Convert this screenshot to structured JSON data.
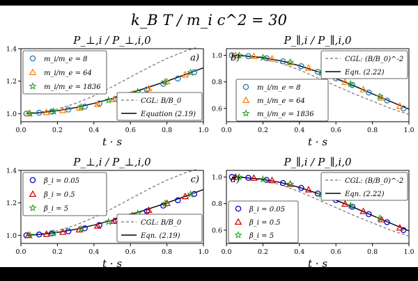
{
  "suptitle": "k_B T / m_i c^2 = 30",
  "colors": {
    "blue": "#1f77b4",
    "orange": "#ff7f0e",
    "green": "#2ca02c",
    "blue_b": "#0000cc",
    "red": "#e00000",
    "cgl": "#707070",
    "eqn": "#000000"
  },
  "chart_data": [
    {
      "id": "a",
      "type": "line",
      "title": "P_⊥,i / P_⊥,i,0",
      "panel_label": "a)",
      "xlabel": "t · s",
      "xlim": [
        0,
        1
      ],
      "ylim": [
        0.95,
        1.4
      ],
      "xticks": [
        0.0,
        0.2,
        0.4,
        0.6,
        0.8,
        1.0
      ],
      "yticks": [
        1.0,
        1.2,
        1.4
      ],
      "legend_top": {
        "position": "top-left",
        "entries": [
          {
            "label": "m_i/m_e = 8",
            "marker": "circle",
            "color": "blue"
          },
          {
            "label": "m_i/m_e = 64",
            "marker": "triangle",
            "color": "orange"
          },
          {
            "label": "m_i/m_e = 1836",
            "marker": "star",
            "color": "green"
          }
        ]
      },
      "legend_bottom": {
        "position": "bottom-right",
        "entries": [
          {
            "label": "CGL: B/B_0",
            "style": "dashed",
            "color": "cgl"
          },
          {
            "label": "Equation (2.19)",
            "style": "solid",
            "color": "eqn"
          }
        ]
      },
      "series": [
        {
          "name": "CGL",
          "style": "dashed",
          "color": "cgl",
          "x": [
            0.03,
            0.1,
            0.2,
            0.3,
            0.4,
            0.5,
            0.6,
            0.7,
            0.8,
            0.9,
            0.97
          ],
          "y": [
            1.0,
            1.007,
            1.028,
            1.063,
            1.11,
            1.165,
            1.225,
            1.285,
            1.34,
            1.385,
            1.41
          ]
        },
        {
          "name": "Eqn",
          "style": "solid",
          "color": "eqn",
          "x": [
            0.03,
            0.1,
            0.2,
            0.3,
            0.4,
            0.5,
            0.6,
            0.7,
            0.8,
            0.9,
            1.0
          ],
          "y": [
            1.0,
            1.005,
            1.018,
            1.037,
            1.063,
            1.093,
            1.127,
            1.163,
            1.2,
            1.24,
            1.282
          ]
        },
        {
          "name": "m_i/m_e = 8",
          "marker": "circle",
          "color": "blue",
          "x": [
            0.03,
            0.1,
            0.17,
            0.26,
            0.35,
            0.43,
            0.52,
            0.6,
            0.69,
            0.78,
            0.86,
            0.95
          ],
          "y": [
            1.0,
            1.005,
            1.012,
            1.025,
            1.043,
            1.063,
            1.09,
            1.116,
            1.148,
            1.183,
            1.216,
            1.255
          ]
        },
        {
          "name": "m_i/m_e = 64",
          "marker": "triangle",
          "color": "orange",
          "x": [
            0.04,
            0.14,
            0.23,
            0.32,
            0.42,
            0.51,
            0.61,
            0.7,
            0.8,
            0.9
          ],
          "y": [
            1.0,
            1.008,
            1.02,
            1.035,
            1.058,
            1.088,
            1.122,
            1.155,
            1.198,
            1.24
          ]
        },
        {
          "name": "m_i/m_e = 1836",
          "marker": "star",
          "color": "green",
          "x": [
            0.05,
            0.18,
            0.33,
            0.48,
            0.64,
            0.79,
            0.93
          ],
          "y": [
            1.001,
            1.013,
            1.04,
            1.083,
            1.135,
            1.195,
            1.253
          ]
        }
      ]
    },
    {
      "id": "b",
      "type": "line",
      "title": "P_∥,i / P_∥,i,0",
      "panel_label": "b)",
      "xlabel": "t · s",
      "xlim": [
        0,
        1
      ],
      "ylim": [
        0.5,
        1.05
      ],
      "xticks": [
        0.0,
        0.2,
        0.4,
        0.6,
        0.8,
        1.0
      ],
      "yticks": [
        0.6,
        0.8,
        1.0
      ],
      "legend_top": {
        "position": "top-right",
        "entries": [
          {
            "label": "CGL: (B/B_0)^-2",
            "style": "dashed",
            "color": "cgl"
          },
          {
            "label": "Eqn. (2.22)",
            "style": "solid",
            "color": "eqn"
          }
        ]
      },
      "legend_bottom": {
        "position": "middle-left",
        "entries": [
          {
            "label": "m_i/m_e = 8",
            "marker": "circle",
            "color": "blue"
          },
          {
            "label": "m_i/m_e = 64",
            "marker": "triangle",
            "color": "orange"
          },
          {
            "label": "m_i/m_e = 1836",
            "marker": "star",
            "color": "green"
          }
        ]
      },
      "series": [
        {
          "name": "CGL",
          "style": "dashed",
          "color": "cgl",
          "x": [
            0.03,
            0.1,
            0.2,
            0.3,
            0.4,
            0.5,
            0.6,
            0.7,
            0.8,
            0.9,
            1.0
          ],
          "y": [
            1.0,
            0.995,
            0.977,
            0.94,
            0.89,
            0.83,
            0.77,
            0.71,
            0.655,
            0.6,
            0.555
          ]
        },
        {
          "name": "Eqn",
          "style": "solid",
          "color": "eqn",
          "x": [
            0.03,
            0.1,
            0.2,
            0.3,
            0.4,
            0.5,
            0.6,
            0.7,
            0.8,
            0.9,
            1.0
          ],
          "y": [
            1.0,
            0.996,
            0.983,
            0.958,
            0.922,
            0.877,
            0.825,
            0.77,
            0.71,
            0.652,
            0.595
          ]
        },
        {
          "name": "m_i/m_e = 8",
          "marker": "circle",
          "color": "blue",
          "x": [
            0.03,
            0.12,
            0.22,
            0.31,
            0.41,
            0.5,
            0.6,
            0.69,
            0.78,
            0.88,
            0.97
          ],
          "y": [
            1.0,
            0.994,
            0.978,
            0.955,
            0.918,
            0.876,
            0.826,
            0.776,
            0.72,
            0.66,
            0.6
          ]
        },
        {
          "name": "m_i/m_e = 64",
          "marker": "triangle",
          "color": "orange",
          "x": [
            0.05,
            0.15,
            0.25,
            0.35,
            0.45,
            0.55,
            0.65,
            0.75,
            0.85,
            0.95
          ],
          "y": [
            1.0,
            0.993,
            0.975,
            0.947,
            0.905,
            0.853,
            0.798,
            0.742,
            0.68,
            0.618
          ]
        },
        {
          "name": "m_i/m_e = 1836",
          "marker": "star",
          "color": "green",
          "x": [
            0.07,
            0.2,
            0.35,
            0.52,
            0.68,
            0.84
          ],
          "y": [
            0.999,
            0.983,
            0.947,
            0.868,
            0.785,
            0.69
          ]
        }
      ]
    },
    {
      "id": "c",
      "type": "line",
      "title": "P_⊥,i / P_⊥,i,0",
      "panel_label": "c)",
      "xlabel": "t · s",
      "xlim": [
        0,
        1
      ],
      "ylim": [
        0.95,
        1.4
      ],
      "xticks": [
        0.0,
        0.2,
        0.4,
        0.6,
        0.8,
        1.0
      ],
      "yticks": [
        1.0,
        1.2,
        1.4
      ],
      "legend_top": {
        "position": "top-left",
        "entries": [
          {
            "label": "β_i = 0.05",
            "marker": "circle",
            "color": "blue_b"
          },
          {
            "label": "β_i = 0.5",
            "marker": "triangle",
            "color": "red"
          },
          {
            "label": "β_i = 5",
            "marker": "star",
            "color": "green"
          }
        ]
      },
      "legend_bottom": {
        "position": "bottom-right",
        "entries": [
          {
            "label": "CGL: B/B_0",
            "style": "dashed",
            "color": "cgl"
          },
          {
            "label": "Eqn. (2.19)",
            "style": "solid",
            "color": "eqn"
          }
        ]
      },
      "series": [
        {
          "name": "CGL",
          "style": "dashed",
          "color": "cgl",
          "x": [
            0.03,
            0.1,
            0.2,
            0.3,
            0.4,
            0.5,
            0.6,
            0.7,
            0.8,
            0.9,
            0.97
          ],
          "y": [
            1.0,
            1.007,
            1.028,
            1.063,
            1.11,
            1.165,
            1.225,
            1.285,
            1.34,
            1.385,
            1.41
          ]
        },
        {
          "name": "Eqn",
          "style": "solid",
          "color": "eqn",
          "x": [
            0.03,
            0.1,
            0.2,
            0.3,
            0.4,
            0.5,
            0.6,
            0.7,
            0.8,
            0.9,
            1.0
          ],
          "y": [
            1.0,
            1.005,
            1.018,
            1.037,
            1.063,
            1.093,
            1.127,
            1.163,
            1.2,
            1.24,
            1.282
          ]
        },
        {
          "name": "β_i = 0.05",
          "marker": "circle",
          "color": "blue_b",
          "x": [
            0.03,
            0.1,
            0.17,
            0.26,
            0.35,
            0.43,
            0.52,
            0.6,
            0.69,
            0.78,
            0.86,
            0.95
          ],
          "y": [
            1.0,
            1.005,
            1.012,
            1.025,
            1.043,
            1.063,
            1.09,
            1.116,
            1.148,
            1.183,
            1.216,
            1.255
          ]
        },
        {
          "name": "β_i = 0.5",
          "marker": "triangle",
          "color": "red",
          "x": [
            0.04,
            0.14,
            0.23,
            0.32,
            0.42,
            0.51,
            0.61,
            0.7,
            0.8,
            0.9
          ],
          "y": [
            1.0,
            1.008,
            1.02,
            1.035,
            1.058,
            1.088,
            1.122,
            1.155,
            1.198,
            1.24
          ]
        },
        {
          "name": "β_i = 5",
          "marker": "star",
          "color": "green",
          "x": [
            0.05,
            0.18,
            0.33,
            0.48,
            0.64,
            0.79,
            0.93
          ],
          "y": [
            1.001,
            1.013,
            1.04,
            1.083,
            1.135,
            1.195,
            1.253
          ]
        }
      ]
    },
    {
      "id": "d",
      "type": "line",
      "title": "P_∥,i / P_∥,i,0",
      "panel_label": "d)",
      "xlabel": "t · s",
      "xlim": [
        0,
        1
      ],
      "ylim": [
        0.5,
        1.05
      ],
      "xticks": [
        0.0,
        0.2,
        0.4,
        0.6,
        0.8,
        1.0
      ],
      "yticks": [
        0.6,
        0.8,
        1.0
      ],
      "legend_top": {
        "position": "top-right",
        "entries": [
          {
            "label": "CGL: (B/B_0)^-2",
            "style": "dashed",
            "color": "cgl"
          },
          {
            "label": "Eqn. (2.22)",
            "style": "solid",
            "color": "eqn"
          }
        ]
      },
      "legend_bottom": {
        "position": "bottom-left",
        "entries": [
          {
            "label": "β_i = 0.05",
            "marker": "circle",
            "color": "blue_b"
          },
          {
            "label": "β_i = 0.5",
            "marker": "triangle",
            "color": "red"
          },
          {
            "label": "β_i = 5",
            "marker": "star",
            "color": "green"
          }
        ]
      },
      "series": [
        {
          "name": "CGL",
          "style": "dashed",
          "color": "cgl",
          "x": [
            0.03,
            0.1,
            0.2,
            0.3,
            0.4,
            0.5,
            0.6,
            0.7,
            0.8,
            0.9,
            1.0
          ],
          "y": [
            1.0,
            0.995,
            0.977,
            0.94,
            0.89,
            0.83,
            0.77,
            0.71,
            0.655,
            0.6,
            0.555
          ]
        },
        {
          "name": "Eqn",
          "style": "solid",
          "color": "eqn",
          "x": [
            0.03,
            0.1,
            0.2,
            0.3,
            0.4,
            0.5,
            0.6,
            0.7,
            0.8,
            0.9,
            1.0
          ],
          "y": [
            1.0,
            0.996,
            0.983,
            0.958,
            0.922,
            0.877,
            0.825,
            0.77,
            0.71,
            0.652,
            0.595
          ]
        },
        {
          "name": "β_i = 0.05",
          "marker": "circle",
          "color": "blue_b",
          "x": [
            0.03,
            0.12,
            0.22,
            0.31,
            0.41,
            0.5,
            0.6,
            0.69,
            0.78,
            0.88,
            0.97
          ],
          "y": [
            1.0,
            0.994,
            0.978,
            0.955,
            0.918,
            0.876,
            0.826,
            0.776,
            0.72,
            0.66,
            0.6
          ]
        },
        {
          "name": "β_i = 0.5",
          "marker": "triangle",
          "color": "red",
          "x": [
            0.05,
            0.15,
            0.25,
            0.35,
            0.45,
            0.55,
            0.65,
            0.75,
            0.85,
            0.95
          ],
          "y": [
            1.0,
            0.993,
            0.975,
            0.947,
            0.905,
            0.853,
            0.798,
            0.742,
            0.68,
            0.618
          ]
        },
        {
          "name": "β_i = 5",
          "marker": "star",
          "color": "green",
          "x": [
            0.07,
            0.2,
            0.35,
            0.52,
            0.68,
            0.84
          ],
          "y": [
            0.999,
            0.983,
            0.947,
            0.868,
            0.785,
            0.69
          ]
        }
      ]
    }
  ]
}
